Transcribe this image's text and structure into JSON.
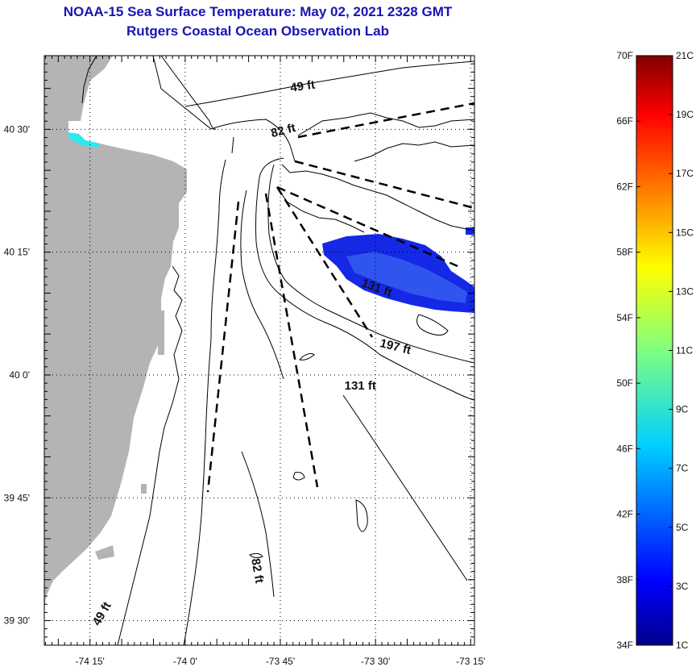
{
  "title": {
    "line1": "NOAA-15 Sea Surface Temperature:  May 02, 2021 2328 GMT",
    "line2": "Rutgers Coastal Ocean Observation Lab"
  },
  "colors": {
    "title": "#1a14b4",
    "land": "#b4b4b4",
    "cold_patch": "#1428e6",
    "cold_patch_inner": "#2850f0",
    "cyan_patch": "#2ee8ee"
  },
  "chart_data": {
    "type": "heatmap",
    "title": "NOAA-15 Sea Surface Temperature:  May 02, 2021 2328 GMT",
    "subtitle": "Rutgers Coastal Ocean Observation Lab",
    "x_axis": {
      "ticks": [
        {
          "value": -74.25,
          "label": "-74 15'"
        },
        {
          "value": -74.0,
          "label": "-74 0'"
        },
        {
          "value": -73.75,
          "label": "-73 45'"
        },
        {
          "value": -73.5,
          "label": "-73 30'"
        },
        {
          "value": -73.25,
          "label": "-73 15'"
        }
      ],
      "range": [
        -74.37,
        -73.24
      ]
    },
    "y_axis": {
      "ticks": [
        {
          "value": 40.5,
          "label": "40 30'"
        },
        {
          "value": 40.25,
          "label": "40 15'"
        },
        {
          "value": 40.0,
          "label": "40 0'"
        },
        {
          "value": 39.75,
          "label": "39 45'"
        },
        {
          "value": 39.5,
          "label": "39 30'"
        }
      ],
      "range": [
        39.45,
        40.65
      ]
    },
    "contour_labels": [
      {
        "text": "49 ft",
        "lon": -73.69,
        "lat": 40.58
      },
      {
        "text": "82 ft",
        "lon": -73.74,
        "lat": 40.49
      },
      {
        "text": "131 ft",
        "lon": -73.5,
        "lat": 40.17
      },
      {
        "text": "197 ft",
        "lon": -73.45,
        "lat": 40.05
      },
      {
        "text": "131 ft",
        "lon": -73.54,
        "lat": 39.97
      },
      {
        "text": "82 ft",
        "lon": -73.82,
        "lat": 39.6
      },
      {
        "text": "49 ft",
        "lon": -74.21,
        "lat": 39.51
      }
    ],
    "cold_patch_temperature_c": 5,
    "colorbar": {
      "fahrenheit_labels": [
        "70F",
        "66F",
        "62F",
        "58F",
        "54F",
        "50F",
        "46F",
        "42F",
        "38F",
        "34F"
      ],
      "celsius_labels": [
        "21C",
        "19C",
        "17C",
        "15C",
        "13C",
        "11C",
        "9C",
        "7C",
        "5C",
        "3C",
        "1C"
      ],
      "range_f": [
        34,
        70
      ],
      "range_c": [
        1,
        21
      ]
    }
  }
}
